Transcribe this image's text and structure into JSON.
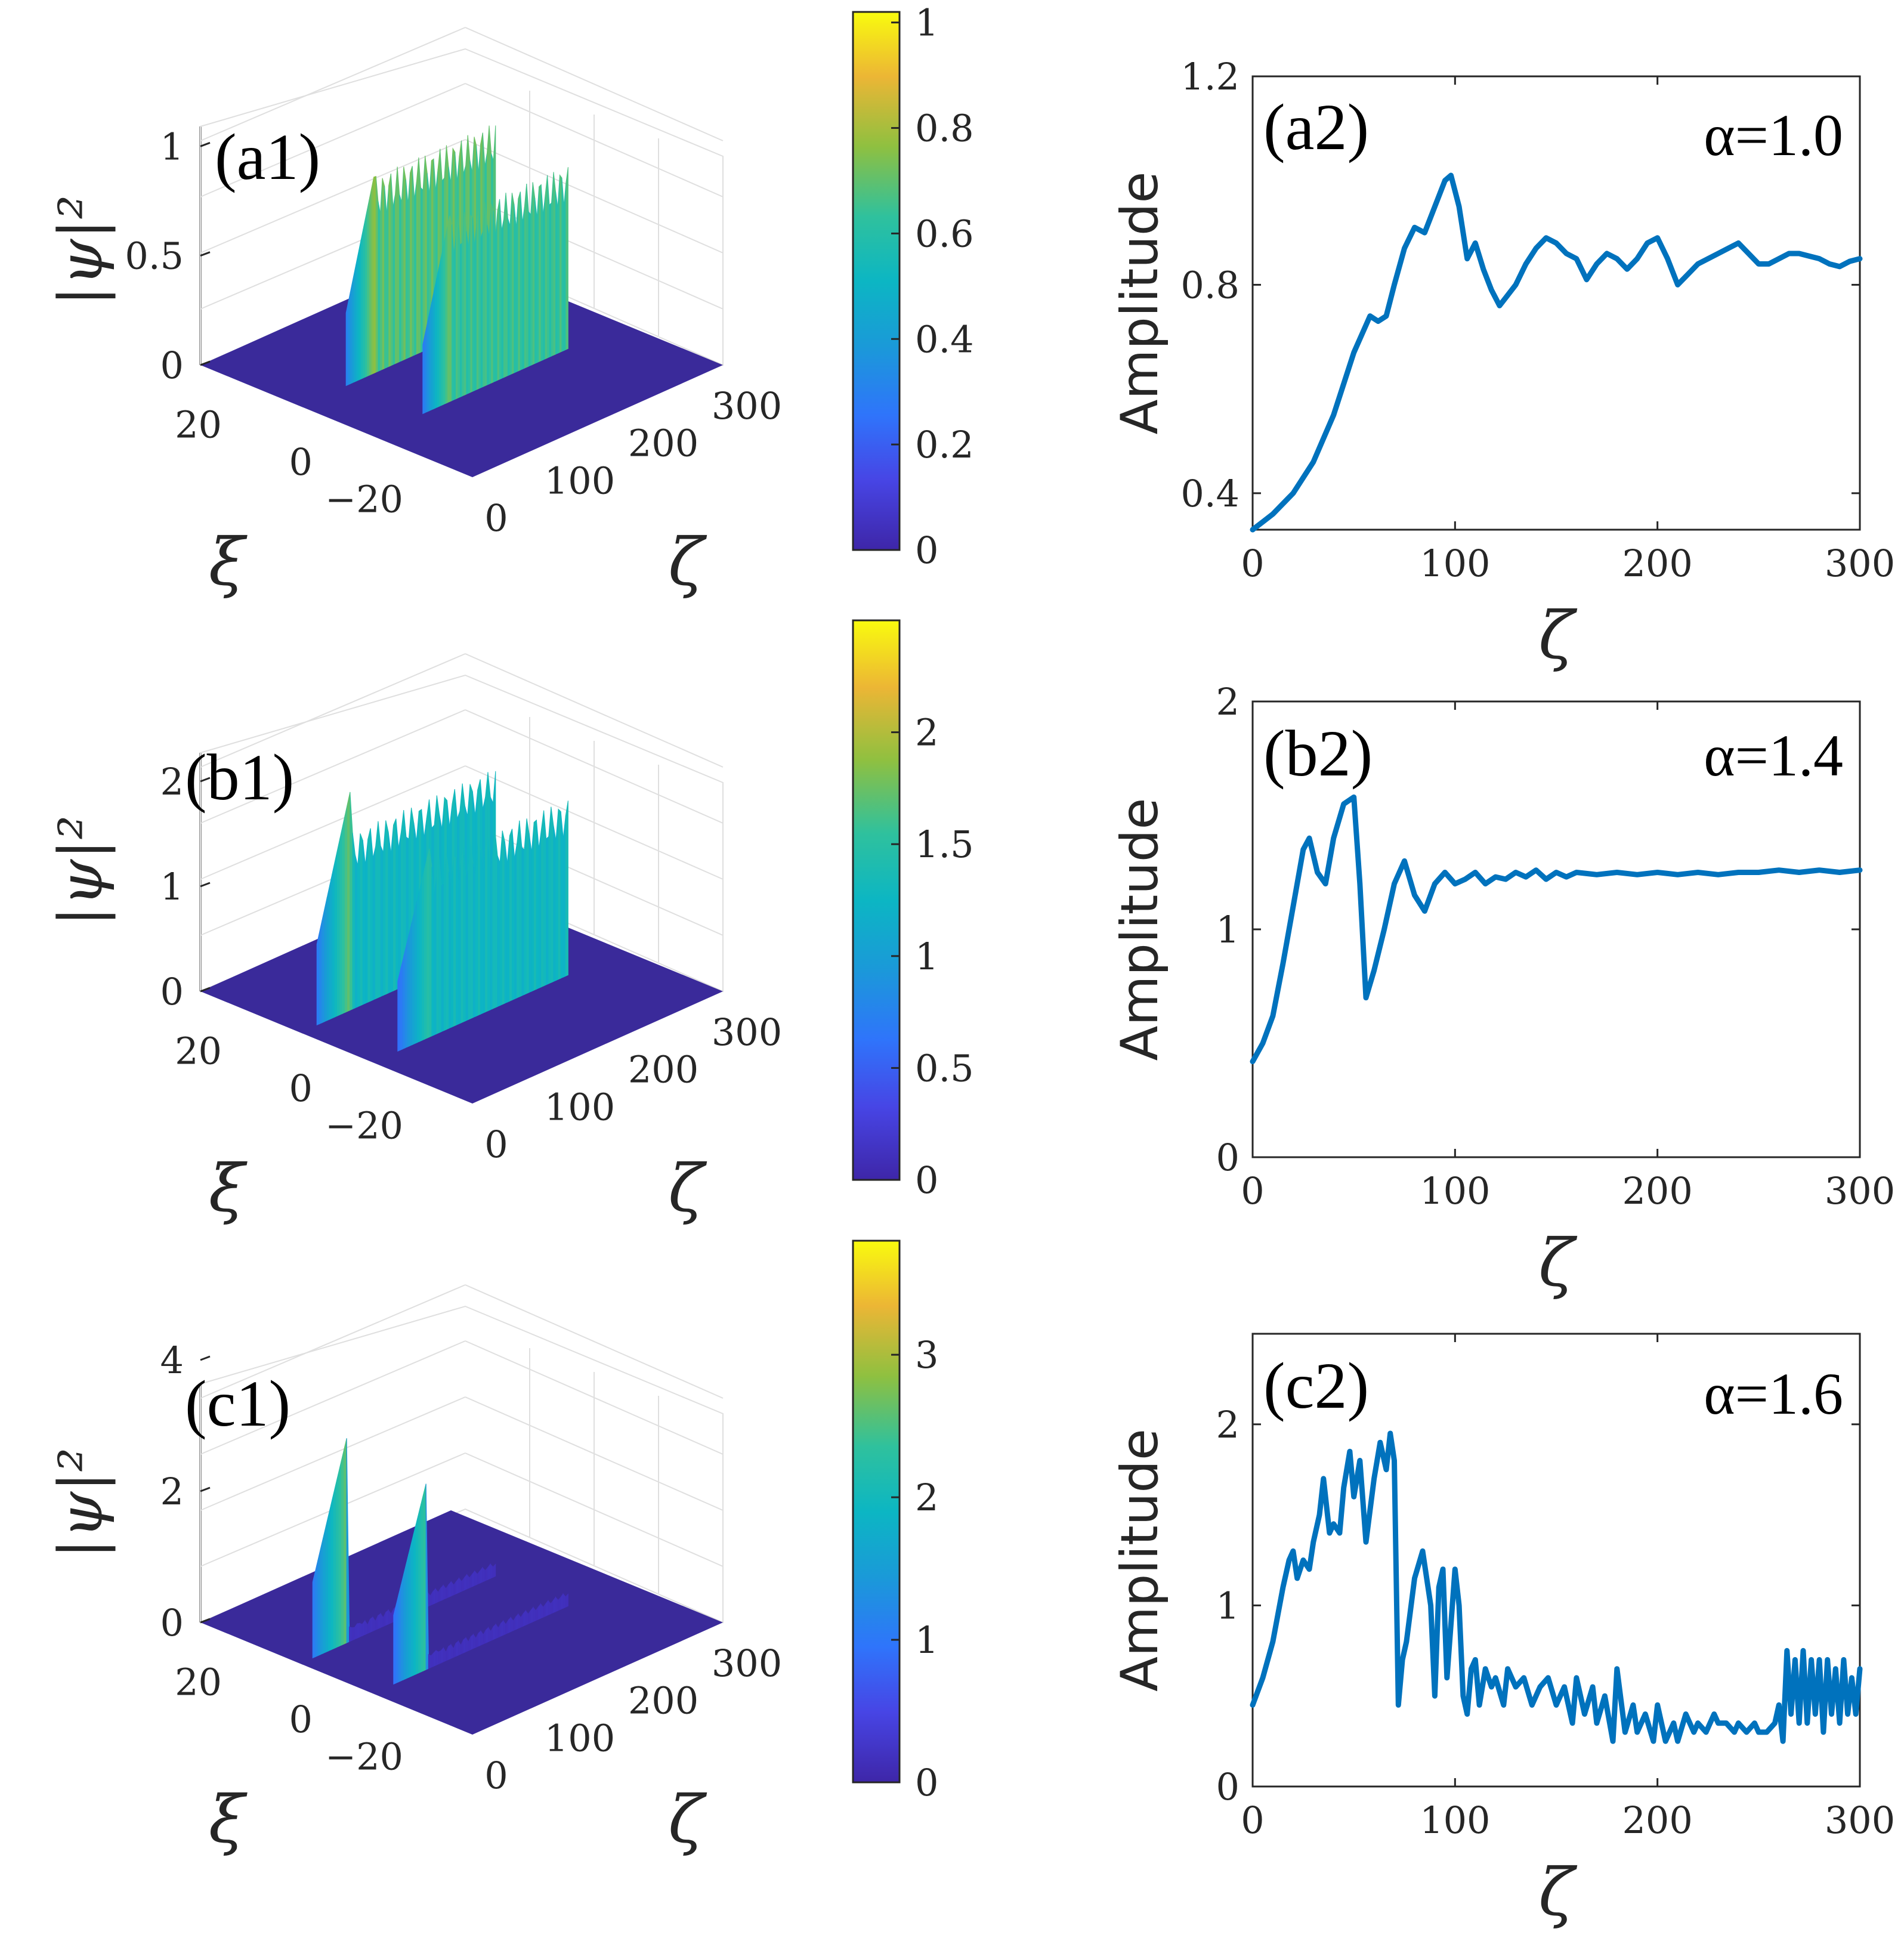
{
  "colors": {
    "line": "#0072BD",
    "axis": "#262626",
    "grid": "#dfdfdf",
    "viridis_low": "#3e26a8",
    "viridis_high": "#f9fb0e"
  },
  "chart_data": [
    {
      "id": "a1",
      "type": "surface",
      "panel_label": "(a1)",
      "zlabel": "|ψ|²",
      "xlabel": "ξ",
      "ylabel": "ζ",
      "x_ticks": [
        "20",
        "0",
        "−20"
      ],
      "y_ticks": [
        "0",
        "100",
        "200",
        "300"
      ],
      "z_ticks": [
        "0",
        "0.5",
        "1"
      ],
      "zlim": [
        0,
        1.2
      ],
      "colorbar": {
        "ticks": [
          "0",
          "0.2",
          "0.4",
          "0.6",
          "0.8",
          "1"
        ],
        "range": [
          0,
          1.02
        ]
      },
      "ridges": [
        {
          "xi": 8,
          "onset": 55,
          "peak": 0.95,
          "plateau": 0.8
        },
        {
          "xi": -8,
          "onset": 60,
          "peak": 0.9,
          "plateau": 0.75
        }
      ]
    },
    {
      "id": "a2",
      "type": "line",
      "panel_label": "(a2)",
      "annotation": "α=1.0",
      "xlabel": "ζ",
      "ylabel": "Amplitude",
      "xlim": [
        0,
        300
      ],
      "ylim": [
        0.33,
        1.2
      ],
      "x_ticks": [
        "0",
        "100",
        "200",
        "300"
      ],
      "y_ticks": [
        "0.4",
        "0.8",
        "1.2"
      ],
      "series": [
        {
          "name": "amplitude",
          "x": [
            0,
            5,
            10,
            20,
            30,
            40,
            50,
            58,
            62,
            66,
            70,
            75,
            80,
            85,
            90,
            95,
            98,
            102,
            106,
            110,
            114,
            118,
            122,
            126,
            130,
            135,
            140,
            145,
            150,
            155,
            160,
            165,
            170,
            175,
            180,
            185,
            190,
            195,
            200,
            205,
            210,
            215,
            220,
            225,
            230,
            235,
            240,
            245,
            250,
            255,
            260,
            265,
            270,
            275,
            280,
            285,
            290,
            295,
            300
          ],
          "y": [
            0.33,
            0.345,
            0.36,
            0.4,
            0.46,
            0.55,
            0.67,
            0.74,
            0.73,
            0.74,
            0.8,
            0.87,
            0.91,
            0.9,
            0.95,
            1.0,
            1.01,
            0.95,
            0.85,
            0.88,
            0.83,
            0.79,
            0.76,
            0.78,
            0.8,
            0.84,
            0.87,
            0.89,
            0.88,
            0.86,
            0.85,
            0.81,
            0.84,
            0.86,
            0.85,
            0.83,
            0.85,
            0.88,
            0.89,
            0.85,
            0.8,
            0.82,
            0.84,
            0.85,
            0.86,
            0.87,
            0.88,
            0.86,
            0.84,
            0.84,
            0.85,
            0.86,
            0.86,
            0.855,
            0.85,
            0.84,
            0.835,
            0.845,
            0.85
          ]
        }
      ]
    },
    {
      "id": "b1",
      "type": "surface",
      "panel_label": "(b1)",
      "zlabel": "|ψ|²",
      "xlabel": "ξ",
      "ylabel": "ζ",
      "x_ticks": [
        "20",
        "0",
        "−20"
      ],
      "y_ticks": [
        "0",
        "100",
        "200",
        "300"
      ],
      "z_ticks": [
        "0",
        "1",
        "2"
      ],
      "zlim": [
        0,
        2.5
      ],
      "colorbar": {
        "ticks": [
          "0",
          "0.5",
          "1",
          "1.5",
          "2"
        ],
        "range": [
          0,
          2.5
        ]
      },
      "ridges": [
        {
          "xi": 8,
          "onset": 20,
          "peak": 2.2,
          "plateau": 1.5
        },
        {
          "xi": -8,
          "onset": 30,
          "peak": 1.9,
          "plateau": 1.5
        }
      ]
    },
    {
      "id": "b2",
      "type": "line",
      "panel_label": "(b2)",
      "annotation": "α=1.4",
      "xlabel": "ζ",
      "ylabel": "Amplitude",
      "xlim": [
        0,
        300
      ],
      "ylim": [
        0,
        2
      ],
      "x_ticks": [
        "0",
        "100",
        "200",
        "300"
      ],
      "y_ticks": [
        "0",
        "1",
        "2"
      ],
      "series": [
        {
          "name": "amplitude",
          "x": [
            0,
            5,
            10,
            15,
            20,
            25,
            28,
            32,
            36,
            40,
            45,
            50,
            53,
            56,
            60,
            65,
            70,
            75,
            80,
            85,
            90,
            95,
            100,
            105,
            110,
            115,
            120,
            125,
            130,
            135,
            140,
            145,
            150,
            155,
            160,
            170,
            180,
            190,
            200,
            210,
            220,
            230,
            240,
            250,
            260,
            270,
            280,
            290,
            300
          ],
          "y": [
            0.42,
            0.5,
            0.62,
            0.85,
            1.1,
            1.35,
            1.4,
            1.25,
            1.2,
            1.4,
            1.55,
            1.58,
            1.2,
            0.7,
            0.82,
            1.0,
            1.2,
            1.3,
            1.15,
            1.08,
            1.2,
            1.25,
            1.2,
            1.22,
            1.25,
            1.2,
            1.23,
            1.22,
            1.25,
            1.23,
            1.26,
            1.22,
            1.25,
            1.23,
            1.25,
            1.24,
            1.25,
            1.24,
            1.25,
            1.24,
            1.25,
            1.24,
            1.25,
            1.25,
            1.26,
            1.25,
            1.26,
            1.25,
            1.26
          ]
        }
      ]
    },
    {
      "id": "c1",
      "type": "surface",
      "panel_label": "(c1)",
      "zlabel": "|ψ|²",
      "xlabel": "ξ",
      "ylabel": "ζ",
      "x_ticks": [
        "20",
        "0",
        "−20"
      ],
      "y_ticks": [
        "0",
        "100",
        "200",
        "300"
      ],
      "z_ticks": [
        "0",
        "2",
        "4"
      ],
      "zlim": [
        0,
        4
      ],
      "colorbar": {
        "ticks": [
          "0",
          "1",
          "2",
          "3"
        ],
        "range": [
          0,
          3.8
        ]
      },
      "ridges": [
        {
          "xi": 8,
          "onset": 15,
          "peak": 3.3,
          "plateau": 0.2
        },
        {
          "xi": -8,
          "onset": 25,
          "peak": 3.0,
          "plateau": 0.2
        }
      ]
    },
    {
      "id": "c2",
      "type": "line",
      "panel_label": "(c2)",
      "annotation": "α=1.6",
      "xlabel": "ζ",
      "ylabel": "Amplitude",
      "xlim": [
        0,
        300
      ],
      "ylim": [
        0,
        2.5
      ],
      "x_ticks": [
        "0",
        "100",
        "200",
        "300"
      ],
      "y_ticks": [
        "0",
        "1",
        "2"
      ],
      "series": [
        {
          "name": "amplitude",
          "x": [
            0,
            5,
            10,
            15,
            18,
            20,
            22,
            25,
            28,
            30,
            33,
            35,
            38,
            40,
            43,
            45,
            48,
            50,
            53,
            56,
            60,
            63,
            66,
            68,
            70,
            72,
            74,
            76,
            80,
            84,
            86,
            88,
            90,
            92,
            94,
            96,
            100,
            102,
            104,
            106,
            108,
            110,
            112,
            115,
            118,
            120,
            124,
            126,
            130,
            134,
            138,
            142,
            146,
            150,
            154,
            158,
            160,
            164,
            168,
            170,
            174,
            178,
            180,
            184,
            188,
            190,
            194,
            198,
            200,
            204,
            208,
            210,
            214,
            218,
            220,
            224,
            228,
            230,
            234,
            238,
            240,
            244,
            248,
            250,
            254,
            258,
            260,
            262,
            264,
            266,
            268,
            270,
            272,
            274,
            276,
            278,
            280,
            282,
            284,
            286,
            288,
            290,
            292,
            294,
            296,
            298,
            300
          ],
          "y": [
            0.45,
            0.6,
            0.8,
            1.1,
            1.25,
            1.3,
            1.15,
            1.25,
            1.2,
            1.35,
            1.5,
            1.7,
            1.4,
            1.45,
            1.4,
            1.65,
            1.85,
            1.6,
            1.8,
            1.35,
            1.7,
            1.9,
            1.75,
            1.95,
            1.8,
            0.45,
            0.7,
            0.8,
            1.15,
            1.3,
            1.15,
            1.0,
            0.5,
            1.1,
            1.2,
            0.6,
            1.2,
            1.0,
            0.5,
            0.4,
            0.65,
            0.7,
            0.45,
            0.65,
            0.55,
            0.6,
            0.45,
            0.65,
            0.55,
            0.6,
            0.45,
            0.55,
            0.6,
            0.45,
            0.55,
            0.35,
            0.6,
            0.4,
            0.55,
            0.35,
            0.5,
            0.25,
            0.65,
            0.3,
            0.45,
            0.3,
            0.4,
            0.25,
            0.45,
            0.25,
            0.35,
            0.25,
            0.4,
            0.3,
            0.35,
            0.3,
            0.4,
            0.35,
            0.35,
            0.3,
            0.35,
            0.3,
            0.35,
            0.3,
            0.3,
            0.35,
            0.45,
            0.25,
            0.75,
            0.4,
            0.7,
            0.35,
            0.75,
            0.35,
            0.7,
            0.4,
            0.7,
            0.3,
            0.7,
            0.4,
            0.65,
            0.35,
            0.7,
            0.4,
            0.6,
            0.4,
            0.65
          ]
        }
      ]
    }
  ]
}
